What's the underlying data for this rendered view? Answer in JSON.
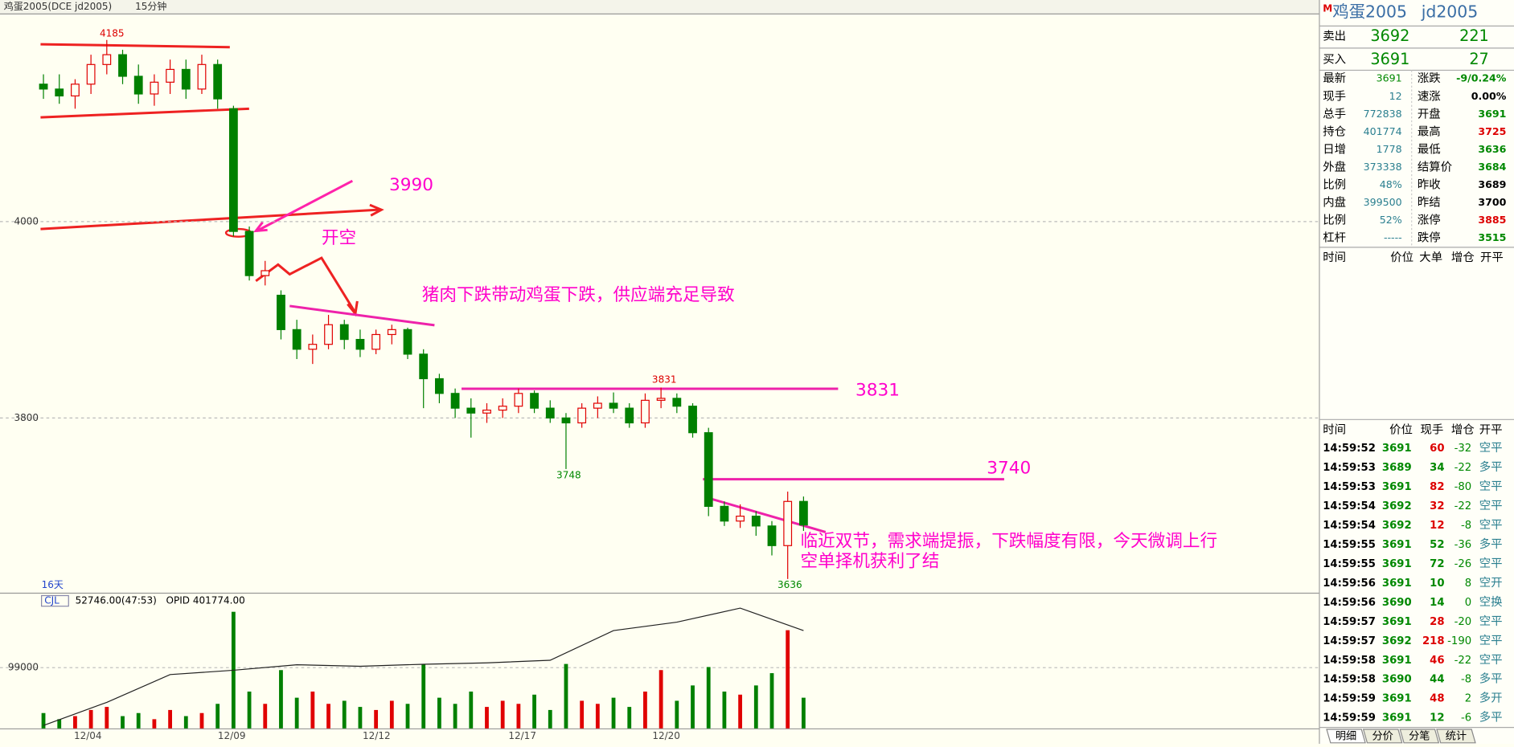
{
  "header": {
    "title": "鸡蛋2005(DCE jd2005)",
    "period": "15分钟"
  },
  "main_chart": {
    "price_range": [
      3623,
      4211
    ],
    "price_ticks": [
      4000,
      3800
    ],
    "x_labels": [
      "12/04",
      "12/09",
      "12/12",
      "12/17",
      "12/20"
    ],
    "days_label": "16天",
    "up_color": "#e00000",
    "down_color": "#008000",
    "candles": [
      [
        4140,
        4150,
        4125,
        4135
      ],
      [
        4135,
        4150,
        4120,
        4128
      ],
      [
        4128,
        4145,
        4115,
        4140
      ],
      [
        4140,
        4170,
        4130,
        4160
      ],
      [
        4160,
        4185,
        4150,
        4170
      ],
      [
        4170,
        4175,
        4140,
        4148
      ],
      [
        4148,
        4160,
        4120,
        4130
      ],
      [
        4130,
        4150,
        4118,
        4142
      ],
      [
        4142,
        4165,
        4130,
        4155
      ],
      [
        4155,
        4165,
        4125,
        4135
      ],
      [
        4135,
        4170,
        4130,
        4160
      ],
      [
        4160,
        4165,
        4115,
        4125
      ],
      [
        4115,
        4118,
        3985,
        3990
      ],
      [
        3990,
        3995,
        3940,
        3945
      ],
      [
        3945,
        3960,
        3935,
        3950
      ],
      [
        3925,
        3930,
        3880,
        3890
      ],
      [
        3890,
        3900,
        3860,
        3870
      ],
      [
        3870,
        3885,
        3855,
        3875
      ],
      [
        3875,
        3905,
        3870,
        3895
      ],
      [
        3895,
        3900,
        3870,
        3880
      ],
      [
        3880,
        3890,
        3862,
        3870
      ],
      [
        3870,
        3890,
        3865,
        3885
      ],
      [
        3885,
        3895,
        3875,
        3890
      ],
      [
        3890,
        3892,
        3860,
        3865
      ],
      [
        3865,
        3870,
        3810,
        3840
      ],
      [
        3840,
        3845,
        3815,
        3825
      ],
      [
        3825,
        3830,
        3800,
        3810
      ],
      [
        3810,
        3820,
        3780,
        3805
      ],
      [
        3805,
        3815,
        3795,
        3808
      ],
      [
        3808,
        3820,
        3800,
        3812
      ],
      [
        3812,
        3830,
        3805,
        3825
      ],
      [
        3825,
        3828,
        3805,
        3810
      ],
      [
        3810,
        3818,
        3795,
        3800
      ],
      [
        3800,
        3805,
        3748,
        3795
      ],
      [
        3795,
        3815,
        3790,
        3810
      ],
      [
        3810,
        3822,
        3800,
        3815
      ],
      [
        3815,
        3826,
        3805,
        3810
      ],
      [
        3810,
        3815,
        3790,
        3795
      ],
      [
        3795,
        3825,
        3790,
        3818
      ],
      [
        3818,
        3831,
        3810,
        3820
      ],
      [
        3820,
        3825,
        3805,
        3812
      ],
      [
        3812,
        3815,
        3780,
        3785
      ],
      [
        3785,
        3790,
        3700,
        3710
      ],
      [
        3710,
        3715,
        3690,
        3695
      ],
      [
        3695,
        3712,
        3688,
        3700
      ],
      [
        3700,
        3705,
        3680,
        3690
      ],
      [
        3690,
        3695,
        3660,
        3670
      ],
      [
        3670,
        3725,
        3636,
        3715
      ],
      [
        3715,
        3720,
        3685,
        3691
      ]
    ],
    "annotations": {
      "high_label": 4185,
      "mid_label": 3831,
      "low_label1": 3748,
      "low_label2": 3636,
      "note_3990": "3990",
      "note_open": "开空",
      "note_pork": "猪肉下跌带动鸡蛋下跌，供应端充足导致",
      "note_3831": "3831",
      "note_3740": "3740",
      "note_holiday": "临近双节，需求端提振，下跌幅度有限，今天微调上行",
      "note_close": "空单择机获利了结"
    }
  },
  "volume_chart": {
    "indicator": "CJL",
    "volume_text": "52746.00(47:53)",
    "oi_text": "OPID 401774.00",
    "volume_range": [
      0,
      196000
    ],
    "volume_ticks": [
      99000
    ],
    "volumes": [
      25000,
      15000,
      20000,
      30000,
      35000,
      20000,
      25000,
      15000,
      30000,
      20000,
      25000,
      40000,
      190000,
      60000,
      40000,
      95000,
      50000,
      60000,
      40000,
      45000,
      35000,
      30000,
      45000,
      40000,
      105000,
      50000,
      40000,
      60000,
      35000,
      45000,
      40000,
      55000,
      30000,
      105000,
      45000,
      40000,
      50000,
      35000,
      60000,
      95000,
      45000,
      70000,
      100000,
      60000,
      55000,
      70000,
      90000,
      160000,
      50000
    ],
    "oi_range": [
      304000,
      424000
    ],
    "oi": [
      306900,
      330000,
      357700,
      362000,
      367500,
      366000,
      368000,
      369400,
      372000,
      401600,
      410000,
      424000,
      401600
    ]
  },
  "quote": {
    "name": "鸡蛋2005",
    "code": "jd2005",
    "sell": {
      "label": "卖出",
      "price": 3692,
      "size": 221
    },
    "buy": {
      "label": "买入",
      "price": 3691,
      "size": 27
    },
    "rows": [
      [
        {
          "label": "最新",
          "value": "3691",
          "color": "#080"
        },
        {
          "label": "涨跌",
          "value": "-9/0.24%",
          "color": "#080"
        }
      ],
      [
        {
          "label": "现手",
          "value": "12",
          "color": "#2a7f8f"
        },
        {
          "label": "速涨",
          "value": "0.00%",
          "color": "#000"
        }
      ],
      [
        {
          "label": "总手",
          "value": "772838",
          "color": "#2a7f8f"
        },
        {
          "label": "开盘",
          "value": "3691",
          "color": "#080"
        }
      ],
      [
        {
          "label": "持仓",
          "value": "401774",
          "color": "#2a7f8f"
        },
        {
          "label": "最高",
          "value": "3725",
          "color": "#d00"
        }
      ],
      [
        {
          "label": "日增",
          "value": "1778",
          "color": "#2a7f8f"
        },
        {
          "label": "最低",
          "value": "3636",
          "color": "#080"
        }
      ],
      [
        {
          "label": "外盘",
          "value": "373338",
          "color": "#2a7f8f"
        },
        {
          "label": "结算价",
          "value": "3684",
          "color": "#080"
        }
      ],
      [
        {
          "label": "比例",
          "value": "48%",
          "color": "#2a7f8f"
        },
        {
          "label": "昨收",
          "value": "3689",
          "color": "#000"
        }
      ],
      [
        {
          "label": "内盘",
          "value": "399500",
          "color": "#2a7f8f"
        },
        {
          "label": "昨结",
          "value": "3700",
          "color": "#000"
        }
      ],
      [
        {
          "label": "比例",
          "value": "52%",
          "color": "#2a7f8f"
        },
        {
          "label": "涨停",
          "value": "3885",
          "color": "#d00"
        }
      ],
      [
        {
          "label": "杠杆",
          "value": "-----",
          "color": "#2a7f8f"
        },
        {
          "label": "跌停",
          "value": "3515",
          "color": "#080"
        }
      ]
    ],
    "big_header": [
      "时间",
      "价位",
      "大单",
      "增仓",
      "开平"
    ],
    "trade_header": [
      "时间",
      "价位",
      "现手",
      "增仓",
      "开平"
    ],
    "trades": [
      [
        "14:59:52",
        "3691",
        "60",
        "-32",
        "空平",
        "#d00"
      ],
      [
        "14:59:53",
        "3689",
        "34",
        "-22",
        "多平",
        "#080"
      ],
      [
        "14:59:53",
        "3691",
        "82",
        "-80",
        "空平",
        "#d00"
      ],
      [
        "14:59:54",
        "3692",
        "32",
        "-22",
        "空平",
        "#d00"
      ],
      [
        "14:59:54",
        "3692",
        "12",
        "-8",
        "空平",
        "#d00"
      ],
      [
        "14:59:55",
        "3691",
        "52",
        "-36",
        "多平",
        "#080"
      ],
      [
        "14:59:55",
        "3691",
        "72",
        "-26",
        "空平",
        "#080"
      ],
      [
        "14:59:56",
        "3691",
        "10",
        "8",
        "空开",
        "#080"
      ],
      [
        "14:59:56",
        "3690",
        "14",
        "0",
        "空换",
        "#080"
      ],
      [
        "14:59:57",
        "3691",
        "28",
        "-20",
        "空平",
        "#d00"
      ],
      [
        "14:59:57",
        "3692",
        "218",
        "-190",
        "空平",
        "#d00"
      ],
      [
        "14:59:58",
        "3691",
        "46",
        "-22",
        "空平",
        "#d00"
      ],
      [
        "14:59:58",
        "3690",
        "44",
        "-8",
        "多平",
        "#080"
      ],
      [
        "14:59:59",
        "3691",
        "48",
        "2",
        "多开",
        "#d00"
      ],
      [
        "14:59:59",
        "3691",
        "12",
        "-6",
        "多平",
        "#080"
      ]
    ],
    "tabs": [
      "明细",
      "分价",
      "分笔",
      "统计"
    ]
  }
}
